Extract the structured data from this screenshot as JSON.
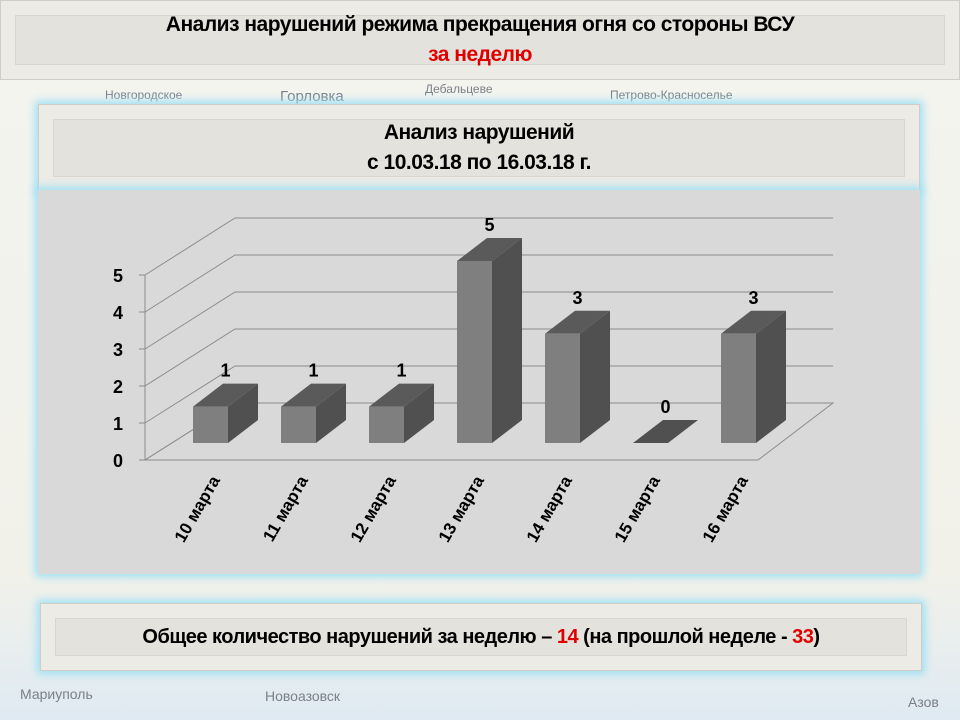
{
  "map_labels": [
    "Горловка",
    "Новгородское",
    "Дебальцеве",
    "Петрово-Красноселье",
    "Мариуполь",
    "Новоазовск",
    "Азов"
  ],
  "header": {
    "title": "Анализ нарушений режима прекращения огня со стороны ВСУ",
    "subtitle": "за неделю"
  },
  "subheader": {
    "line1": "Анализ нарушений",
    "line2": "с 10.03.18 по 16.03.18 г."
  },
  "footer": {
    "text": "Общее количество нарушений за неделю – ",
    "current": "14",
    "middle": " (на прошлой неделе - ",
    "previous": "33",
    "end": ")"
  },
  "colors": {
    "accent": "#e00000",
    "bar": "#7f7f7f",
    "bar_side": "#505050"
  },
  "chart_data": {
    "type": "bar",
    "categories": [
      "10 марта",
      "11 марта",
      "12 марта",
      "13 марта",
      "14 марта",
      "15 марта",
      "16 марта"
    ],
    "values": [
      1,
      1,
      1,
      5,
      3,
      0,
      3
    ],
    "yticks": [
      "0",
      "1",
      "2",
      "3",
      "4",
      "5"
    ],
    "ylim": [
      0,
      5
    ],
    "grid": true,
    "title": "",
    "xlabel": "",
    "ylabel": ""
  }
}
